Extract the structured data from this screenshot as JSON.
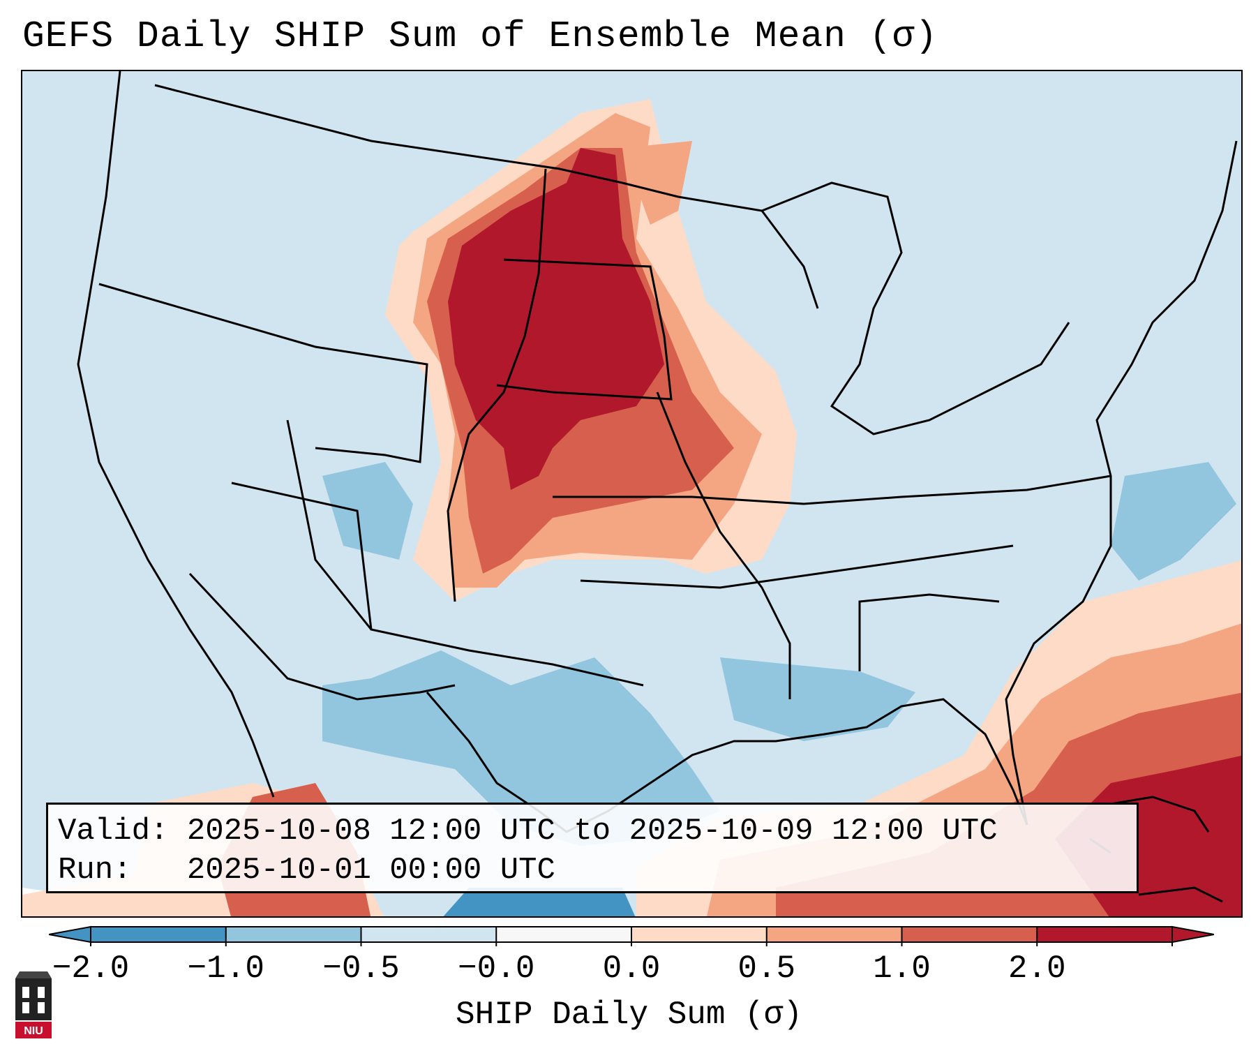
{
  "title": "GEFS Daily SHIP Sum of Ensemble Mean (σ)",
  "info": {
    "valid": "Valid: 2025-10-08 12:00 UTC to 2025-10-09 12:00 UTC",
    "run": "Run:   2025-10-01 00:00 UTC"
  },
  "colorbar": {
    "label": "SHIP Daily Sum (σ)",
    "ticks": [
      "−2.0",
      "−1.0",
      "−0.5",
      "−0.0",
      "0.0",
      "0.5",
      "1.0",
      "2.0"
    ],
    "colors": [
      "#4393c3",
      "#92c5de",
      "#d1e5f0",
      "#f7f7f7",
      "#fddbc7",
      "#f4a582",
      "#d6604d",
      "#b2182b"
    ]
  },
  "logo": {
    "text": "NIU"
  }
}
